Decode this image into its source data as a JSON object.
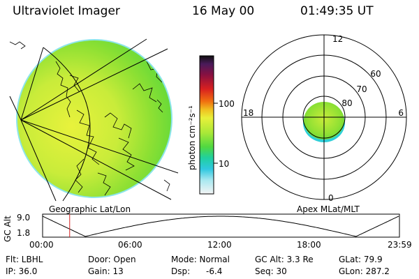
{
  "header": {
    "instrument": "Ultraviolet Imager",
    "date": "16 May 00",
    "time": "01:49:35 UT"
  },
  "colorbar": {
    "unit_label": "photon cm⁻²s⁻¹",
    "ticks": [
      "100",
      "10"
    ]
  },
  "polar_plot": {
    "mlt_labels": {
      "top": "12",
      "left": "18",
      "right": "6",
      "bottom": "0"
    },
    "mlat_labels": [
      "60",
      "70",
      "80"
    ],
    "caption": "Apex MLat/MLT"
  },
  "geo_plot": {
    "caption": "Geographic Lat/Lon"
  },
  "altitude_strip": {
    "axis_label": "GC Alt",
    "y_ticks": [
      "9.0",
      "1.8"
    ],
    "x_ticks": [
      "00:00",
      "06:00",
      "12:00",
      "18:00",
      "23:59"
    ],
    "current_fraction": 0.076
  },
  "status": {
    "filter": "Flt: LBHL",
    "door": "Door: Open",
    "mode": "Mode: Normal",
    "gc_alt": "GC Alt: 3.3 Re",
    "glat": "GLat:  79.9",
    "ip": "IP: 36.0",
    "gain": "Gain: 13",
    "dsp_label": "Dsp:",
    "dsp_value": "-6.4",
    "seq": "Seq: 30",
    "glon": "GLon: 287.2"
  },
  "colors": {
    "disk_green": "#8ee033",
    "disk_yellow": "#e8f23c",
    "disk_cyan": "#2ecfd8",
    "marker_red": "#d42020"
  }
}
